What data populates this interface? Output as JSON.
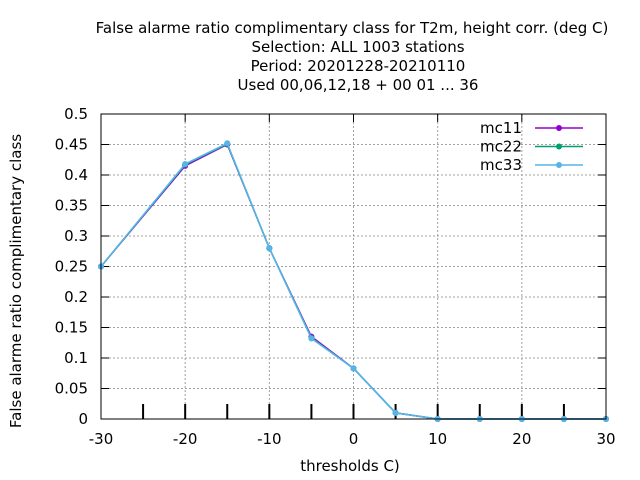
{
  "chart_data": {
    "type": "line",
    "title_lines": [
      "False alarme ratio complimentary class  for T2m, height corr. (deg C)",
      "Selection: ALL   1003 stations",
      "Period: 20201228-20210110",
      "Used  00,06,12,18 + 00 01 ... 36"
    ],
    "xlabel": "thresholds C)",
    "ylabel": "False alarme ratio complimentary class",
    "xlim": [
      -30,
      30
    ],
    "ylim": [
      0,
      0.5
    ],
    "x_ticks": [
      -30,
      -20,
      -10,
      0,
      10,
      20,
      30
    ],
    "x_tick_labels": [
      "-30",
      "-20",
      "-10",
      "0",
      "10",
      "20",
      "30"
    ],
    "y_ticks": [
      0,
      0.05,
      0.1,
      0.15,
      0.2,
      0.25,
      0.3,
      0.35,
      0.4,
      0.45,
      0.5
    ],
    "y_tick_labels": [
      "0",
      "0.05",
      "0.1",
      "0.15",
      "0.2",
      "0.25",
      "0.3",
      "0.35",
      "0.4",
      "0.45",
      "0.5"
    ],
    "x_minor_ticks": [
      -25,
      -20,
      -15,
      -10,
      -5,
      0,
      5,
      10,
      15,
      20,
      25
    ],
    "grid": true,
    "legend_position": "top-right",
    "x": [
      -30,
      -20,
      -15,
      -10,
      -5,
      0,
      5,
      10,
      15,
      20,
      25,
      30
    ],
    "series": [
      {
        "name": "mc11",
        "color": "#9400d3",
        "values": [
          0.25,
          0.415,
          0.45,
          0.28,
          0.135,
          0.083,
          0.01,
          0.0,
          0.0,
          0.0,
          0.0,
          0.0
        ]
      },
      {
        "name": "mc22",
        "color": "#009e73",
        "values": [
          0.25,
          0.417,
          0.451,
          0.28,
          0.133,
          0.083,
          0.01,
          0.0,
          0.0,
          0.0,
          0.0,
          0.0
        ]
      },
      {
        "name": "mc33",
        "color": "#56b4e9",
        "values": [
          0.25,
          0.418,
          0.452,
          0.28,
          0.132,
          0.083,
          0.01,
          0.0,
          0.0,
          0.0,
          0.0,
          0.0
        ]
      }
    ]
  }
}
